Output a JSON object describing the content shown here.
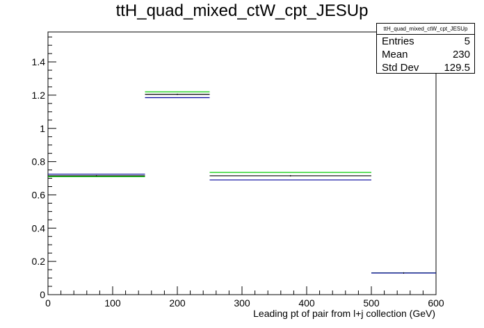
{
  "title": "ttH_quad_mixed_ctW_cpt_JESUp",
  "stats": {
    "name": "ttH_quad_mixed_ctW_cpt_JESUp",
    "rows": [
      {
        "label": "Entries",
        "value": "5"
      },
      {
        "label": "Mean",
        "value": "230"
      },
      {
        "label": "Std Dev",
        "value": "129.5"
      }
    ]
  },
  "chart_data": {
    "type": "step",
    "title": "ttH_quad_mixed_ctW_cpt_JESUp",
    "xlabel": "Leading pt of pair from l+j collection (GeV)",
    "ylabel": "",
    "xlim": [
      0,
      600
    ],
    "ylim": [
      0,
      1.58
    ],
    "xticks": [
      0,
      100,
      200,
      300,
      400,
      500,
      600
    ],
    "yticks": [
      0,
      0.2,
      0.4,
      0.6,
      0.8,
      1,
      1.2,
      1.4
    ],
    "bin_edges": [
      0,
      150,
      250,
      500,
      600
    ],
    "series": [
      {
        "color": "#000000",
        "values": [
          0.715,
          1.205,
          0.715,
          0.13
        ]
      },
      {
        "color": "#00cc00",
        "values": [
          0.71,
          1.22,
          0.735,
          0.13
        ]
      },
      {
        "color": "#000099",
        "values": [
          0.725,
          1.185,
          0.69,
          0.13
        ]
      }
    ]
  }
}
